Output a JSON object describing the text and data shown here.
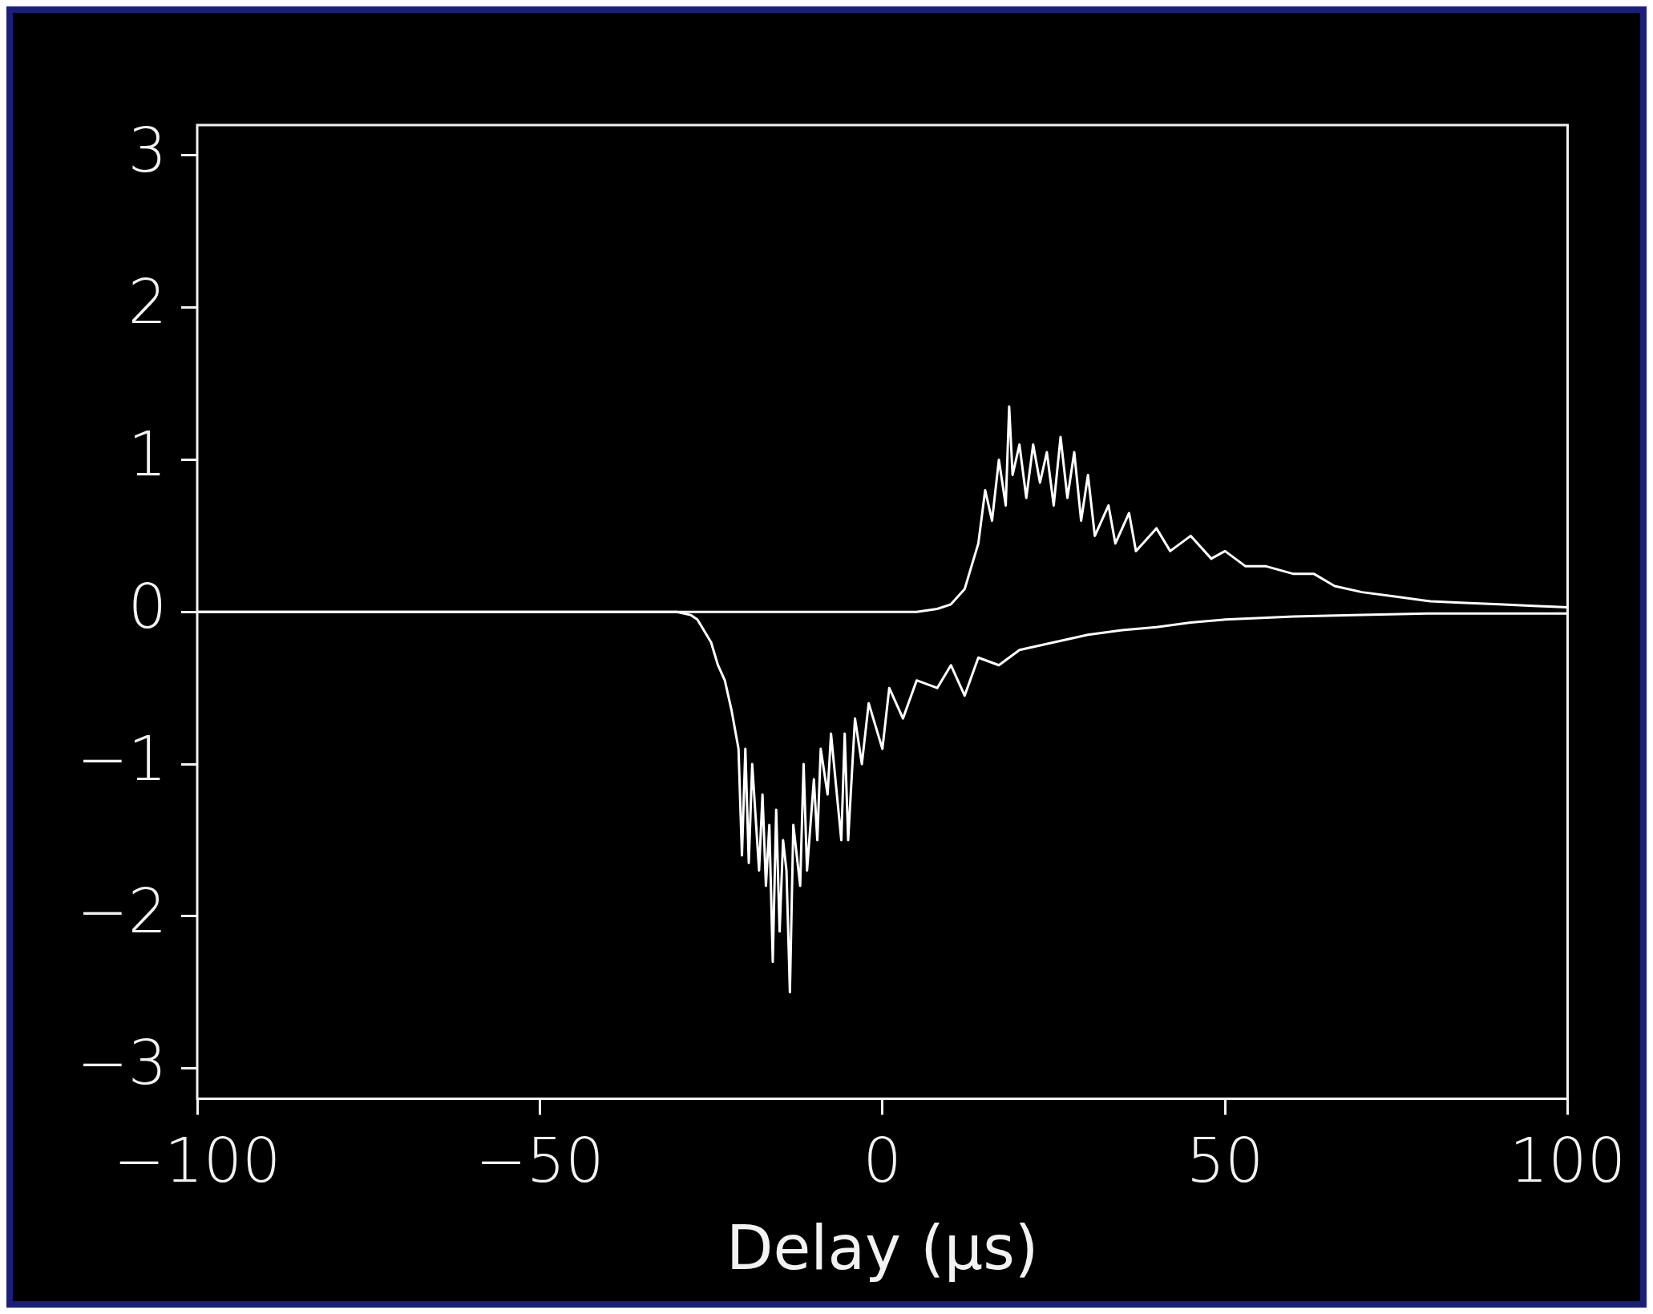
{
  "chart_data": {
    "type": "line",
    "xlabel": "Delay (μs)",
    "xlim": [
      -100,
      100
    ],
    "xticks": [
      {
        "value": -100,
        "label": "−100"
      },
      {
        "value": -50,
        "label": "−50"
      },
      0,
      50,
      100
    ],
    "ylim": [
      -3.2,
      3.2
    ],
    "yticks": [
      {
        "value": -3,
        "label": "−3"
      },
      {
        "value": -2,
        "label": "−2"
      },
      {
        "value": -1,
        "label": "−1"
      },
      0,
      1,
      2,
      3
    ],
    "grid": false,
    "legend": false,
    "marker": "none",
    "line_style": "solid",
    "series": [
      {
        "color": "#ffffff",
        "x": [
          -100,
          5,
          8,
          10,
          12,
          13,
          14,
          15,
          16,
          17,
          18,
          18.5,
          19,
          20,
          21,
          22,
          23,
          24,
          25,
          26,
          27,
          28,
          29,
          30,
          31,
          33,
          34,
          36,
          37,
          40,
          42,
          45,
          48,
          50,
          53,
          56,
          60,
          63,
          66,
          70,
          75,
          80,
          85,
          90,
          95,
          100
        ],
        "values": [
          0,
          0,
          0.02,
          0.05,
          0.15,
          0.3,
          0.45,
          0.8,
          0.6,
          1.0,
          0.7,
          1.35,
          0.9,
          1.1,
          0.75,
          1.1,
          0.85,
          1.05,
          0.7,
          1.15,
          0.75,
          1.05,
          0.6,
          0.9,
          0.5,
          0.7,
          0.45,
          0.65,
          0.4,
          0.55,
          0.4,
          0.5,
          0.35,
          0.4,
          0.3,
          0.3,
          0.25,
          0.25,
          0.17,
          0.13,
          0.1,
          0.07,
          0.06,
          0.05,
          0.04,
          0.03
        ]
      },
      {
        "color": "#ffffff",
        "x": [
          -100,
          -30,
          -28,
          -27,
          -25,
          -24,
          -23,
          -22,
          -21,
          -20.5,
          -20,
          -19.5,
          -19,
          -18,
          -17.5,
          -17,
          -16.5,
          -16,
          -15.5,
          -15,
          -14.5,
          -14,
          -13.5,
          -13,
          -12,
          -11.5,
          -11,
          -10,
          -9.5,
          -9,
          -8,
          -7.5,
          -6,
          -5.5,
          -5,
          -4,
          -3,
          -2,
          0,
          1,
          3,
          5,
          8,
          10,
          12,
          14,
          17,
          20,
          25,
          30,
          35,
          40,
          45,
          50,
          60,
          70,
          80,
          100
        ],
        "values": [
          0,
          0,
          -0.02,
          -0.05,
          -0.2,
          -0.35,
          -0.45,
          -0.65,
          -0.9,
          -1.6,
          -0.9,
          -1.65,
          -1.0,
          -1.7,
          -1.2,
          -1.8,
          -1.4,
          -2.3,
          -1.3,
          -2.1,
          -1.5,
          -1.7,
          -2.5,
          -1.4,
          -1.8,
          -1.0,
          -1.7,
          -1.1,
          -1.5,
          -0.9,
          -1.2,
          -0.8,
          -1.5,
          -0.8,
          -1.5,
          -0.7,
          -1.0,
          -0.6,
          -0.9,
          -0.5,
          -0.7,
          -0.45,
          -0.5,
          -0.35,
          -0.55,
          -0.3,
          -0.35,
          -0.25,
          -0.2,
          -0.15,
          -0.12,
          -0.1,
          -0.07,
          -0.05,
          -0.03,
          -0.02,
          -0.01,
          -0.01
        ]
      }
    ]
  }
}
